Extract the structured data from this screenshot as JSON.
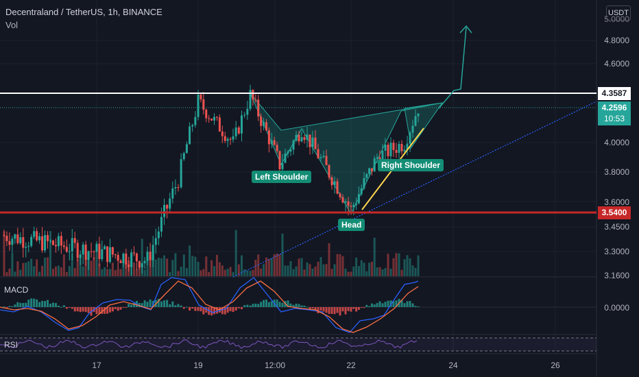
{
  "header": {
    "title": "Decentraland / TetherUS, 1h, BINANCE",
    "volume_label": "Vol"
  },
  "currency_button": "USDT",
  "price_axis": {
    "ticks": [
      "4.8000",
      "4.6000",
      "4.0000",
      "3.8000",
      "3.6000",
      "3.4500",
      "3.3000",
      "3.1600"
    ],
    "partial_top_tick": "5.0000"
  },
  "macd_axis": {
    "ticks": [
      "0.0000"
    ]
  },
  "time_axis": {
    "ticks": [
      "17",
      "19",
      "12:00",
      "22",
      "24",
      "26"
    ]
  },
  "levels": {
    "resistance": {
      "value": "4.3587",
      "color": "#ffffff"
    },
    "support": {
      "value": "3.5400",
      "color": "#c62828"
    },
    "current": {
      "value": "4.2596",
      "countdown": "10:53",
      "color": "#26a69a"
    }
  },
  "annotations": {
    "left_shoulder": "Left Shoulder",
    "head": "Head",
    "right_shoulder": "Right Shoulder"
  },
  "indicators": {
    "macd_label": "MACD",
    "rsi_label": "RSI"
  },
  "colors": {
    "up": "#26a69a",
    "down": "#ef5350",
    "background": "#131722",
    "accent": "#138d75"
  },
  "chart_data": {
    "type": "candlestick",
    "symbol": "Decentraland / TetherUS",
    "interval": "1h",
    "exchange": "BINANCE",
    "ylim": [
      3.16,
      5.0
    ],
    "pattern": "inverse head and shoulders",
    "resistance": 4.3587,
    "support": 3.54,
    "last_price": 4.2596,
    "price_path_key_points": [
      {
        "x": "16",
        "y": 3.4
      },
      {
        "x": "17",
        "y": 3.3
      },
      {
        "x": "18",
        "y": 3.25
      },
      {
        "x": "19",
        "y": 3.75
      },
      {
        "x": "19",
        "y": 4.3
      },
      {
        "x": "20",
        "y": 4.0
      },
      {
        "x": "20",
        "y": 4.35
      },
      {
        "x": "21",
        "y": 3.85
      },
      {
        "x": "21",
        "y": 4.1
      },
      {
        "x": "22",
        "y": 3.55
      },
      {
        "x": "22",
        "y": 3.9
      },
      {
        "x": "23",
        "y": 4.0
      },
      {
        "x": "23",
        "y": 4.26
      }
    ],
    "macd_ylim": [
      -0.08,
      0.08
    ]
  }
}
